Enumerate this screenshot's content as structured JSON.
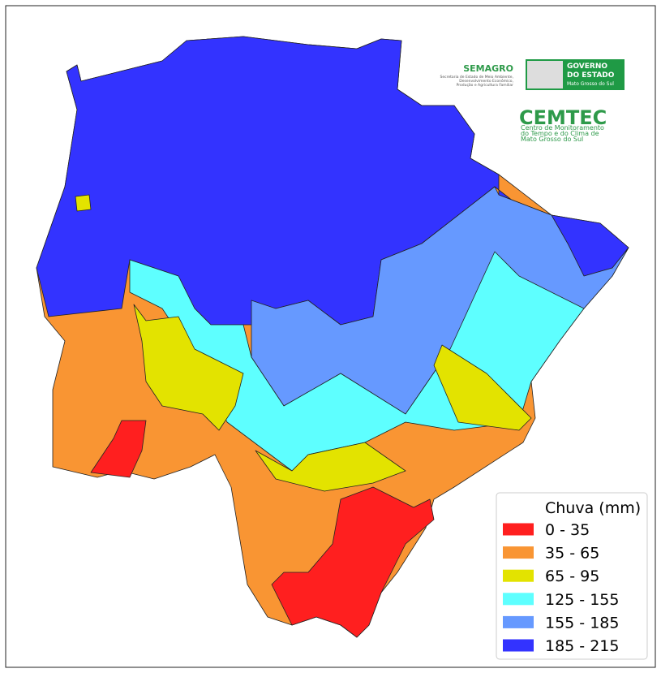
{
  "legend": {
    "title": "Chuva (mm)",
    "items": [
      {
        "label": "0 - 35",
        "color": "#ff1f1f"
      },
      {
        "label": "35 - 65",
        "color": "#f99533"
      },
      {
        "label": "65 - 95",
        "color": "#e3e300"
      },
      {
        "label": "125 - 155",
        "color": "#5effff"
      },
      {
        "label": "155 - 185",
        "color": "#6699ff"
      },
      {
        "label": "185 - 215",
        "color": "#3333ff"
      }
    ]
  },
  "logos": {
    "semagro": "SEMAGRO",
    "semagro_subtitle": [
      "Secretaria de Estado de Meio Ambiente,",
      "Desenvolvimento Econômico,",
      "Produção e Agricultura Familiar"
    ],
    "governo": [
      "GOVERNO",
      "DO ESTADO",
      "Mato Grosso do Sul"
    ],
    "cemtec": "CEMTEC",
    "cemtec_subtitle": [
      "Centro de Monitoramento",
      "do Tempo e do Clima de",
      "Mato Grosso do Sul"
    ]
  }
}
